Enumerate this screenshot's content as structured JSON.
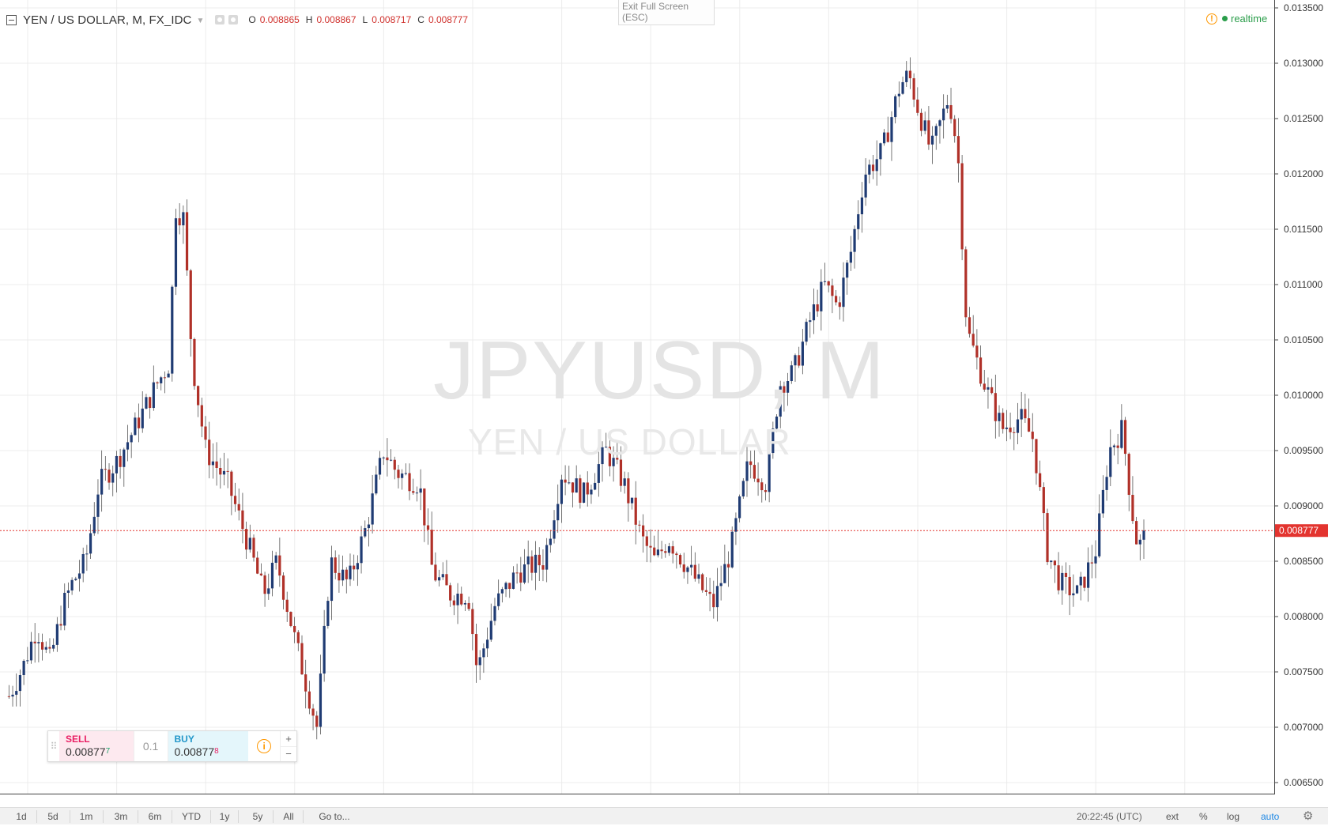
{
  "legend": {
    "title": "YEN / US DOLLAR, M, FX_IDC",
    "ohlc": [
      {
        "key": "O",
        "value": "0.008865"
      },
      {
        "key": "H",
        "value": "0.008867"
      },
      {
        "key": "L",
        "value": "0.008717"
      },
      {
        "key": "C",
        "value": "0.008777"
      }
    ]
  },
  "exit_fullscreen": {
    "line1": "Exit Full Screen",
    "line2": "(ESC)"
  },
  "status": {
    "realtime_label": "realtime",
    "warning_glyph": "!"
  },
  "watermark": {
    "symbol": "JPYUSD, M",
    "description": "YEN / US DOLLAR"
  },
  "trade_widget": {
    "sell_label": "SELL",
    "sell_price": "0.00877",
    "sell_pip": "7",
    "quantity": "0.1",
    "buy_label": "BUY",
    "buy_price": "0.00877",
    "buy_pip": "8",
    "info_glyph": "i",
    "plus": "+",
    "minus": "−"
  },
  "bottom_toolbar": {
    "ranges": [
      "1d",
      "5d",
      "1m",
      "3m",
      "6m",
      "YTD",
      "1y",
      "5y",
      "All"
    ],
    "goto_label": "Go to...",
    "clock": "20:22:45 (UTC)",
    "ext_label": "ext",
    "percent_label": "%",
    "log_label": "log",
    "auto_label": "auto"
  },
  "colors": {
    "up_candle": "#1f3b73",
    "down_candle": "#b03028",
    "grid": "#ececec",
    "price_line": "#e3342f",
    "axis_text": "#333333"
  },
  "chart_data": {
    "type": "candlestick",
    "symbol": "JPYUSD",
    "interval": "M",
    "ylim": [
      0.0065,
      0.0135
    ],
    "yticks": [
      "0.006500",
      "0.007000",
      "0.007500",
      "0.008000",
      "0.008500",
      "0.009000",
      "0.009500",
      "0.010000",
      "0.010500",
      "0.011000",
      "0.011500",
      "0.012000",
      "0.012500",
      "0.013000",
      "0.013500"
    ],
    "xlim": [
      1991.55,
      2018.9
    ],
    "xticks": [
      "1992",
      "1994",
      "1996",
      "1998",
      "2000",
      "2002",
      "2004",
      "2006",
      "2008",
      "2010",
      "2012",
      "2014",
      "2016",
      "2018"
    ],
    "last_price": 0.008777,
    "last_price_label": "0.008777",
    "anchors": [
      [
        1991.58,
        0.00728
      ],
      [
        1991.9,
        0.00755
      ],
      [
        1992.2,
        0.0079
      ],
      [
        1992.5,
        0.0076
      ],
      [
        1992.8,
        0.0081
      ],
      [
        1993.0,
        0.0083
      ],
      [
        1993.3,
        0.0085
      ],
      [
        1993.6,
        0.0092
      ],
      [
        1994.0,
        0.0094
      ],
      [
        1994.4,
        0.0097
      ],
      [
        1994.9,
        0.0101
      ],
      [
        1995.2,
        0.0103
      ],
      [
        1995.3,
        0.0117
      ],
      [
        1995.5,
        0.0116
      ],
      [
        1995.7,
        0.0103
      ],
      [
        1996.0,
        0.0095
      ],
      [
        1996.5,
        0.0092
      ],
      [
        1997.0,
        0.0086
      ],
      [
        1997.3,
        0.0082
      ],
      [
        1997.6,
        0.0085
      ],
      [
        1998.0,
        0.0078
      ],
      [
        1998.5,
        0.007
      ],
      [
        1998.8,
        0.0085
      ],
      [
        1999.2,
        0.0083
      ],
      [
        1999.6,
        0.0088
      ],
      [
        2000.0,
        0.0095
      ],
      [
        2000.3,
        0.0093
      ],
      [
        2000.8,
        0.0092
      ],
      [
        2001.1,
        0.0084
      ],
      [
        2001.5,
        0.0082
      ],
      [
        2001.9,
        0.0082
      ],
      [
        2002.1,
        0.0075
      ],
      [
        2002.5,
        0.0081
      ],
      [
        2003.0,
        0.0084
      ],
      [
        2003.6,
        0.0085
      ],
      [
        2004.0,
        0.0093
      ],
      [
        2004.5,
        0.0091
      ],
      [
        2005.0,
        0.0095
      ],
      [
        2005.4,
        0.0092
      ],
      [
        2005.8,
        0.0087
      ],
      [
        2006.1,
        0.0085
      ],
      [
        2006.4,
        0.0087
      ],
      [
        2006.9,
        0.0084
      ],
      [
        2007.4,
        0.0081
      ],
      [
        2007.8,
        0.0086
      ],
      [
        2008.2,
        0.0094
      ],
      [
        2008.6,
        0.0092
      ],
      [
        2008.9,
        0.0101
      ],
      [
        2009.2,
        0.0102
      ],
      [
        2009.6,
        0.0107
      ],
      [
        2009.9,
        0.011
      ],
      [
        2010.2,
        0.0108
      ],
      [
        2010.5,
        0.0113
      ],
      [
        2010.8,
        0.012
      ],
      [
        2011.2,
        0.0122
      ],
      [
        2011.6,
        0.0128
      ],
      [
        2011.8,
        0.0129
      ],
      [
        2012.0,
        0.0126
      ],
      [
        2012.3,
        0.0122
      ],
      [
        2012.7,
        0.0127
      ],
      [
        2012.9,
        0.0122
      ],
      [
        2013.1,
        0.0106
      ],
      [
        2013.5,
        0.0101
      ],
      [
        2013.9,
        0.0097
      ],
      [
        2014.3,
        0.0098
      ],
      [
        2014.6,
        0.0096
      ],
      [
        2014.9,
        0.0086
      ],
      [
        2015.2,
        0.0083
      ],
      [
        2015.6,
        0.0082
      ],
      [
        2016.0,
        0.0086
      ],
      [
        2016.3,
        0.0095
      ],
      [
        2016.6,
        0.0097
      ],
      [
        2016.8,
        0.009
      ],
      [
        2016.95,
        0.0086
      ],
      [
        2017.1,
        0.008777
      ]
    ]
  }
}
